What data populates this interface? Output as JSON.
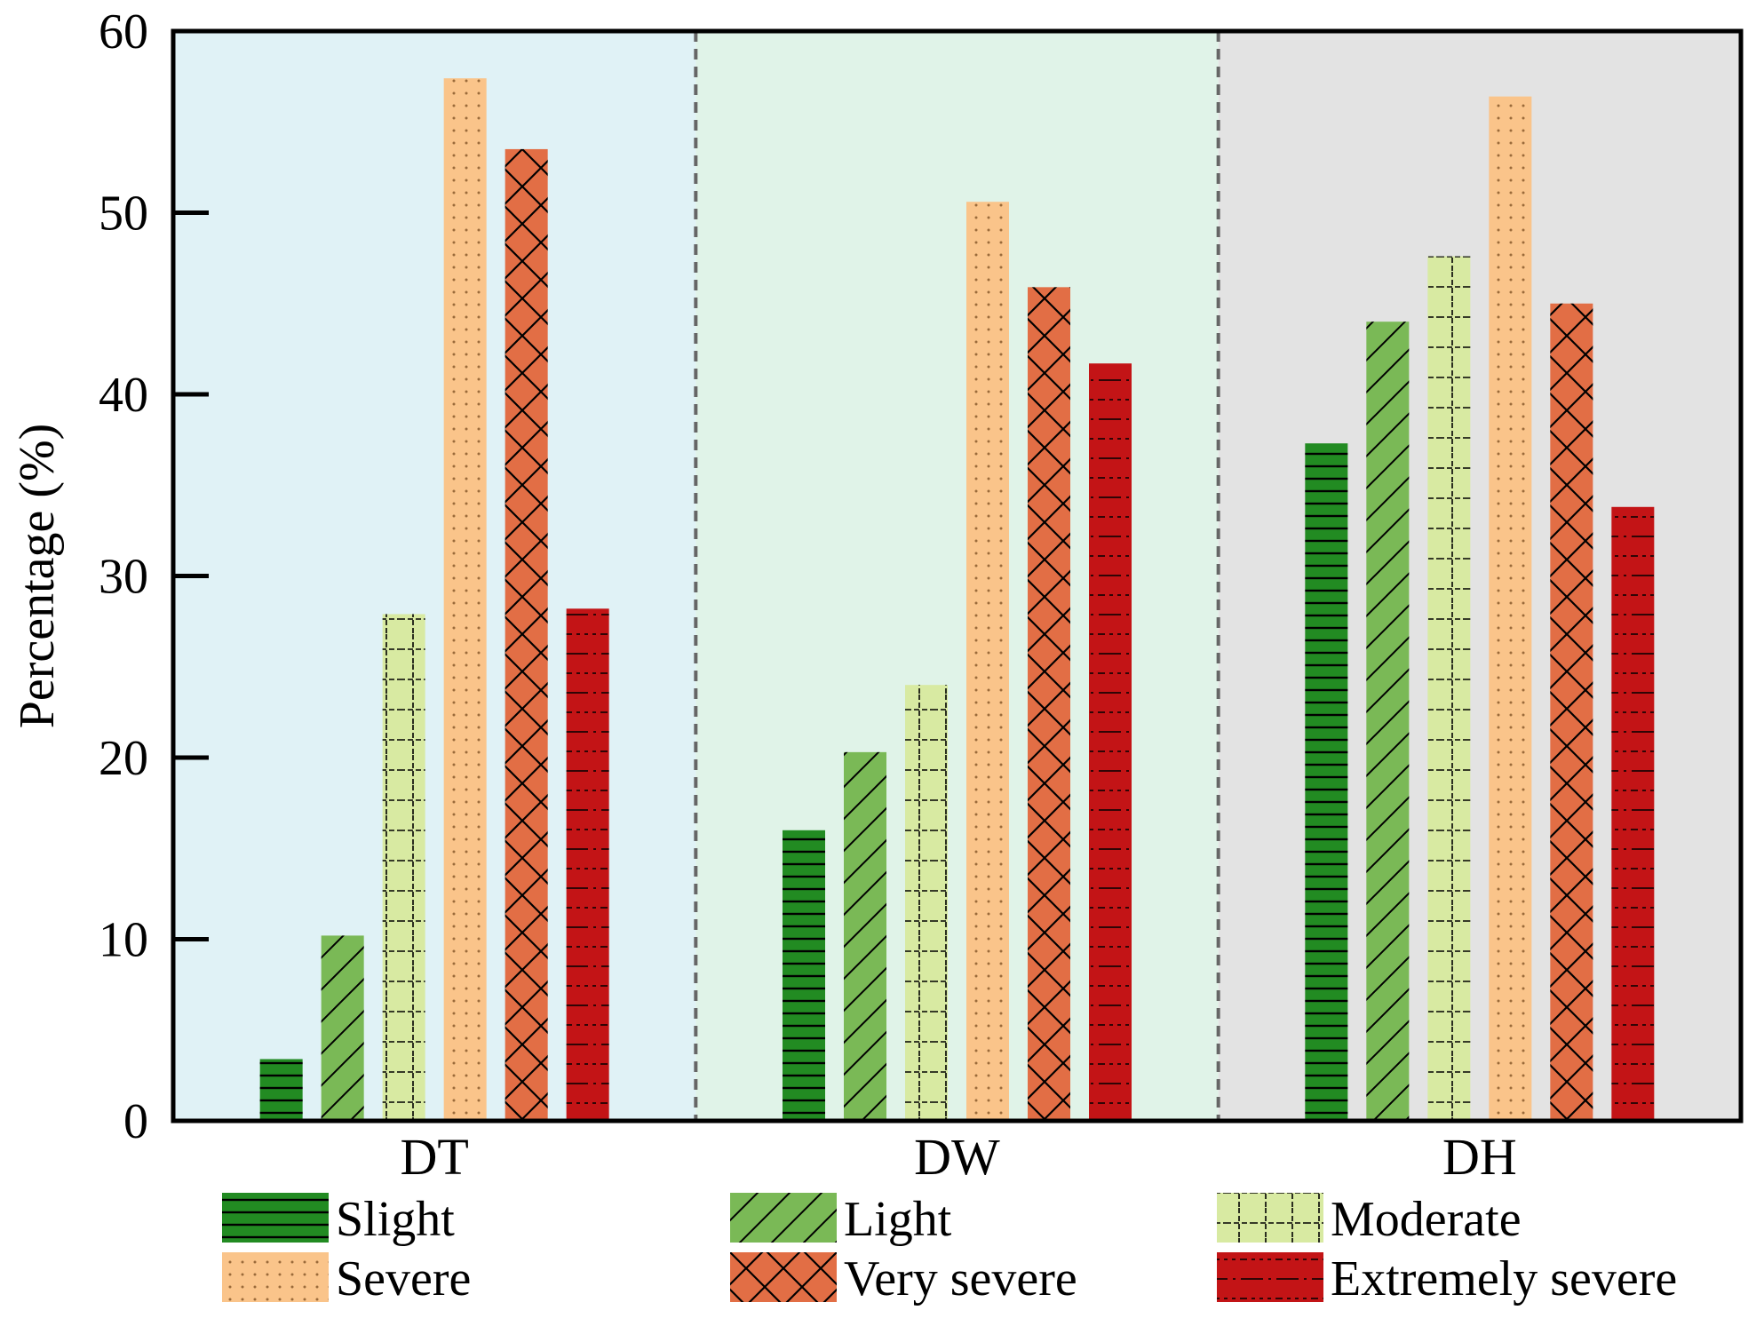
{
  "chart_data": {
    "type": "bar",
    "title": "",
    "xlabel": "",
    "ylabel": "Percentage (%)",
    "ylim": [
      0,
      60
    ],
    "yticks": [
      "0",
      "10",
      "20",
      "30",
      "40",
      "50",
      "60"
    ],
    "categories": [
      "DT",
      "DW",
      "DH"
    ],
    "panel_colors": [
      "#e0f2f6",
      "#e0f3e8",
      "#e3e3e3"
    ],
    "series": [
      {
        "name": "Slight",
        "values": [
          3.4,
          16.0,
          37.3
        ],
        "color": "#228b22",
        "pattern": "hlines"
      },
      {
        "name": "Light",
        "values": [
          10.2,
          20.3,
          44.0
        ],
        "color": "#7ab956",
        "pattern": "diag"
      },
      {
        "name": "Moderate",
        "values": [
          27.9,
          24.0,
          47.6
        ],
        "color": "#d8eaa2",
        "pattern": "grid"
      },
      {
        "name": "Severe",
        "values": [
          57.4,
          50.6,
          56.4
        ],
        "color": "#fac48a",
        "pattern": "dots"
      },
      {
        "name": "Very severe",
        "values": [
          53.5,
          45.9,
          45.0
        ],
        "color": "#e26e45",
        "pattern": "cross"
      },
      {
        "name": "Extremely severe",
        "values": [
          28.2,
          41.7,
          33.8
        ],
        "color": "#c31416",
        "pattern": "dashdot"
      }
    ]
  }
}
